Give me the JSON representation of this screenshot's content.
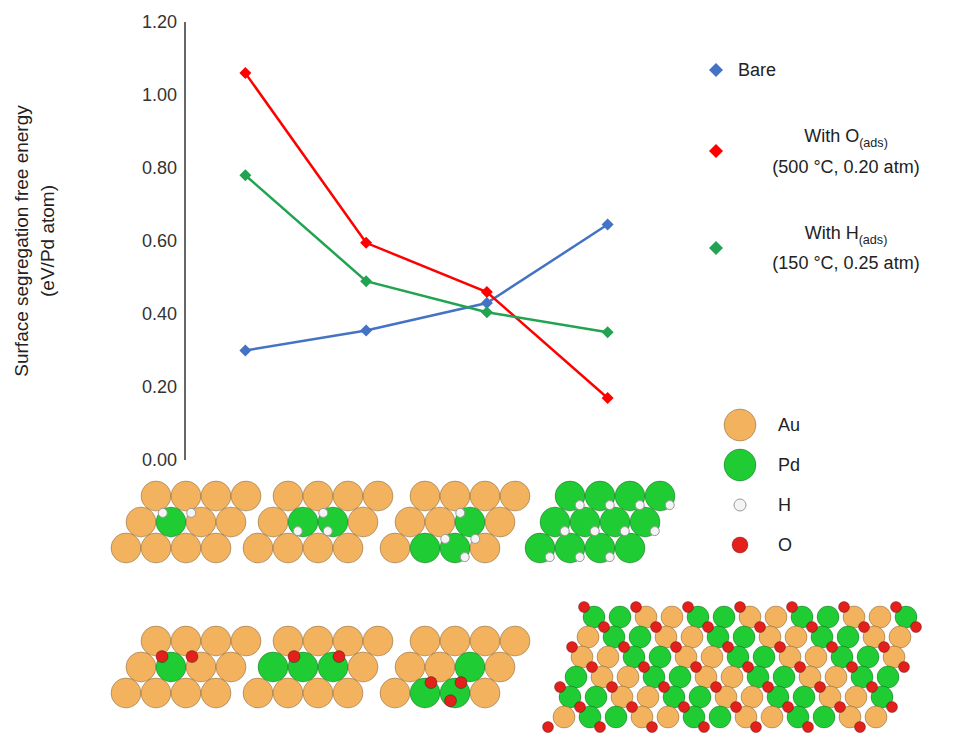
{
  "chart_data": {
    "type": "line",
    "categories": [
      null,
      null,
      null,
      null
    ],
    "y_label": "Surface segregation free energy (eV/Pd atom)",
    "ylim": [
      0,
      1.2
    ],
    "yticks": [
      {
        "value": 0,
        "label": "0.00"
      },
      {
        "value": 0.2,
        "label": "0.20"
      },
      {
        "value": 0.4,
        "label": "0.40"
      },
      {
        "value": 0.6,
        "label": "0.60"
      },
      {
        "value": 0.8,
        "label": "0.80"
      },
      {
        "value": 1.0,
        "label": "1.00"
      },
      {
        "value": 1.2,
        "label": "1.20"
      }
    ],
    "grid": false,
    "tick_labels": "y",
    "legend": "right",
    "marker": "diamond",
    "series": [
      {
        "name": "Bare",
        "color": "#4472c4",
        "values": [
          0.3,
          0.355,
          0.43,
          0.645
        ]
      },
      {
        "name": "With O(ads) (500 °C, 0.20 atm)",
        "color": "#ff0000",
        "values": [
          1.06,
          0.595,
          0.46,
          0.17
        ]
      },
      {
        "name": "With H(ads) (150 °C, 0.25 atm)",
        "color": "#22a351",
        "values": [
          0.78,
          0.49,
          0.405,
          0.35
        ]
      }
    ]
  },
  "atoms": [
    {
      "name": "Au",
      "color": "#f3b25e"
    },
    {
      "name": "Pd",
      "color": "#1fcc33"
    },
    {
      "name": "H",
      "color": "#f4f4f4"
    },
    {
      "name": "O",
      "color": "#e3201b"
    }
  ]
}
